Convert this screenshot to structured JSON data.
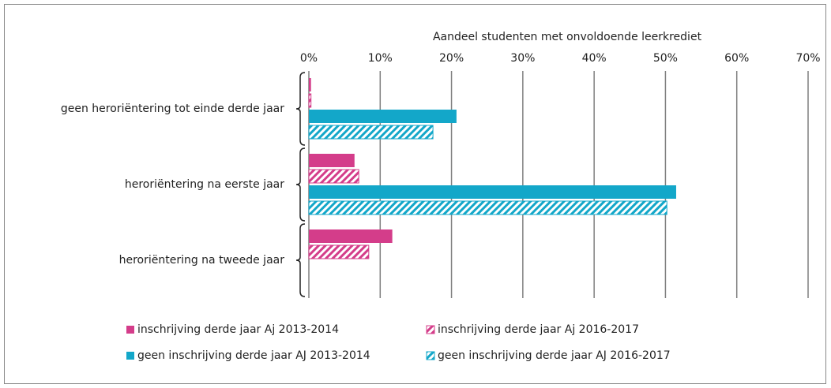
{
  "chart_data": {
    "type": "hbar",
    "xlabel": "Aandeel studenten met onvoldoende leerkrediet",
    "categories": [
      "geen heroriëntering tot einde derde jaar",
      "heroriëntering na eerste jaar",
      "heroriëntering na tweede jaar"
    ],
    "series": [
      {
        "name": "inschrijving derde jaar Aj 2013-2014",
        "color": "#d43d8a",
        "hatch": false,
        "values": [
          0.3,
          6.4,
          11.7
        ]
      },
      {
        "name": "inschrijving derde jaar Aj 2016-2017",
        "color": "#d43d8a",
        "hatch": true,
        "values": [
          0.3,
          7.0,
          8.4
        ]
      },
      {
        "name": "geen inschrijving derde jaar AJ 2013-2014",
        "color": "#13a7c9",
        "hatch": false,
        "values": [
          20.7,
          51.5,
          null
        ]
      },
      {
        "name": "geen inschrijving derde jaar AJ 2016-2017",
        "color": "#13a7c9",
        "hatch": true,
        "values": [
          17.4,
          50.2,
          null
        ]
      }
    ],
    "xlim": [
      0,
      70
    ],
    "xticks": [
      {
        "value": 0,
        "label": "0%"
      },
      {
        "value": 10,
        "label": "10%"
      },
      {
        "value": 20,
        "label": "20%"
      },
      {
        "value": 30,
        "label": "30%"
      },
      {
        "value": 40,
        "label": "40%"
      },
      {
        "value": 50,
        "label": "50%"
      },
      {
        "value": 60,
        "label": "60%"
      },
      {
        "value": 70,
        "label": "70%"
      }
    ],
    "grid": true
  }
}
